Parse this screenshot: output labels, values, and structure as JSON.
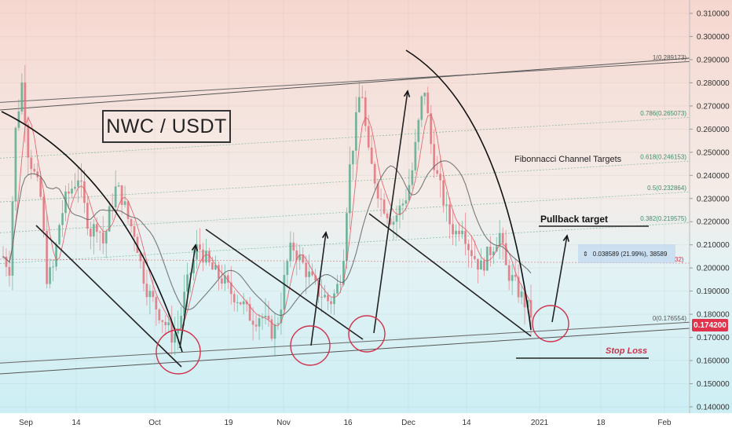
{
  "chart_data": {
    "type": "candlestick",
    "title": "NWC / USDT",
    "y_axis": {
      "ticks": [
        "0.310000",
        "0.300000",
        "0.290000",
        "0.280000",
        "0.270000",
        "0.260000",
        "0.250000",
        "0.240000",
        "0.230000",
        "0.220000",
        "0.210000",
        "0.200000",
        "0.190000",
        "0.180000",
        "0.170000",
        "0.160000",
        "0.150000",
        "0.140000"
      ],
      "range": [
        0.136,
        0.315
      ]
    },
    "x_axis": {
      "ticks": [
        "Sep",
        "14",
        "Oct",
        "19",
        "Nov",
        "16",
        "Dec",
        "14",
        "2021",
        "18",
        "Feb"
      ]
    },
    "last_price": "0.174200",
    "fib_levels": [
      {
        "label": "1(0.289173)",
        "value": 0.289173
      },
      {
        "label": "0.786(0.265073)",
        "value": 0.265073
      },
      {
        "label": "0.618(0.246153)",
        "value": 0.246153
      },
      {
        "label": "0.5(0.232864)",
        "value": 0.232864
      },
      {
        "label": "0.382(0.219575)",
        "value": 0.219575
      },
      {
        "label": "0(0.176554)",
        "value": 0.176554
      }
    ],
    "annotations": {
      "fib_title": "Fibonnacci Channel Targets",
      "pullback": "Pullback target",
      "stop_loss": "Stop Loss",
      "measure": "0.038589 (21.99%), 38589",
      "measure_tail": "32)"
    },
    "price_path": [
      [
        0.205,
        0.2,
        0.26,
        0.28,
        0.25,
        0.24,
        0.23,
        0.195,
        0.2,
        0.22,
        0.23,
        0.235,
        0.24,
        0.225,
        0.215,
        0.22,
        0.21,
        0.225,
        0.235,
        0.23,
        0.22,
        0.215,
        0.2,
        0.19,
        0.185,
        0.18,
        0.175,
        0.17,
        0.175,
        0.19,
        0.2,
        0.21,
        0.205,
        0.2,
        0.197,
        0.195,
        0.19,
        0.188,
        0.185,
        0.18,
        0.178,
        0.18,
        0.175,
        0.172,
        0.18,
        0.2,
        0.21,
        0.205,
        0.2,
        0.195,
        0.19,
        0.188,
        0.185,
        0.19,
        0.2,
        0.24,
        0.26,
        0.28,
        0.25,
        0.24,
        0.23,
        0.225,
        0.22,
        0.225,
        0.23,
        0.24,
        0.26,
        0.28,
        0.255,
        0.24,
        0.23,
        0.22,
        0.215,
        0.22,
        0.21,
        0.205,
        0.2,
        0.205,
        0.21,
        0.215,
        0.2,
        0.195,
        0.19,
        0.185,
        0.18
      ]
    ]
  }
}
